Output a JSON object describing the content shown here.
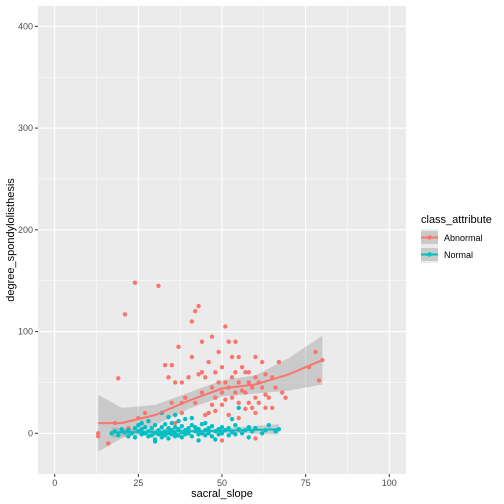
{
  "chart_data": {
    "type": "scatter",
    "xlabel": "sacral_slope",
    "ylabel": "degree_spondylolisthesis",
    "xlim": [
      -5,
      105
    ],
    "ylim": [
      -40,
      420
    ],
    "x_ticks": [
      0,
      25,
      50,
      75,
      100
    ],
    "x_tick_labels": [
      "0",
      "25",
      "50",
      "75",
      "100"
    ],
    "y_ticks": [
      0,
      100,
      200,
      300,
      400
    ],
    "y_tick_labels": [
      "0",
      "100",
      "200",
      "300",
      "400"
    ],
    "grid": true,
    "legend": {
      "title": "class_attribute",
      "placement": "right",
      "entries": [
        "Abnormal",
        "Normal"
      ]
    },
    "colors": {
      "Abnormal": "#F8766D",
      "Normal": "#00BFC4",
      "panel": "#EBEBEB",
      "ribbon": "#999999"
    },
    "series": [
      {
        "name": "Abnormal",
        "points": [
          [
            13,
            0
          ],
          [
            13,
            -3
          ],
          [
            16,
            -10
          ],
          [
            19,
            54
          ],
          [
            21,
            117
          ],
          [
            24,
            148
          ],
          [
            18,
            10
          ],
          [
            22,
            5
          ],
          [
            25,
            15
          ],
          [
            27,
            20
          ],
          [
            31,
            145
          ],
          [
            32,
            20
          ],
          [
            33,
            67
          ],
          [
            34,
            55
          ],
          [
            35,
            67
          ],
          [
            35,
            30
          ],
          [
            36,
            10
          ],
          [
            37,
            85
          ],
          [
            38,
            20
          ],
          [
            38,
            50
          ],
          [
            39,
            35
          ],
          [
            40,
            55
          ],
          [
            41,
            75
          ],
          [
            41,
            110
          ],
          [
            42,
            120
          ],
          [
            42,
            30
          ],
          [
            43,
            125
          ],
          [
            43,
            58
          ],
          [
            44,
            90
          ],
          [
            44,
            40
          ],
          [
            45,
            18
          ],
          [
            45,
            55
          ],
          [
            46,
            70
          ],
          [
            47,
            95
          ],
          [
            47,
            45
          ],
          [
            47,
            28
          ],
          [
            48,
            60
          ],
          [
            48,
            35
          ],
          [
            48,
            22
          ],
          [
            49,
            80
          ],
          [
            49,
            50
          ],
          [
            50,
            40
          ],
          [
            50,
            65
          ],
          [
            50,
            28
          ],
          [
            51,
            105
          ],
          [
            51,
            50
          ],
          [
            51,
            33
          ],
          [
            52,
            90
          ],
          [
            52,
            45
          ],
          [
            52,
            18
          ],
          [
            53,
            75
          ],
          [
            53,
            55
          ],
          [
            53,
            35
          ],
          [
            54,
            60
          ],
          [
            54,
            40
          ],
          [
            55,
            75
          ],
          [
            55,
            50
          ],
          [
            55,
            30
          ],
          [
            55,
            15
          ],
          [
            56,
            65
          ],
          [
            56,
            42
          ],
          [
            57,
            60
          ],
          [
            57,
            40
          ],
          [
            57,
            24
          ],
          [
            58,
            50
          ],
          [
            58,
            30
          ],
          [
            59,
            45
          ],
          [
            59,
            25
          ],
          [
            60,
            75
          ],
          [
            60,
            55
          ],
          [
            60,
            35
          ],
          [
            60,
            20
          ],
          [
            61,
            50
          ],
          [
            61,
            30
          ],
          [
            62,
            45
          ],
          [
            63,
            58
          ],
          [
            63,
            38
          ],
          [
            63,
            25
          ],
          [
            64,
            35
          ],
          [
            65,
            55
          ],
          [
            66,
            45
          ],
          [
            67,
            70
          ],
          [
            68,
            40
          ],
          [
            69,
            35
          ],
          [
            76,
            65
          ],
          [
            78,
            80
          ],
          [
            79,
            52
          ],
          [
            80,
            72
          ],
          [
            62,
            70
          ],
          [
            60,
            -5
          ],
          [
            43,
            4
          ],
          [
            55,
            3
          ],
          [
            65,
            25
          ],
          [
            50,
            -7
          ],
          [
            46,
            20
          ],
          [
            36,
            50
          ],
          [
            38,
            30
          ],
          [
            44,
            60
          ],
          [
            54,
            90
          ],
          [
            58,
            60
          ]
        ],
        "fit": [
          [
            13,
            10
          ],
          [
            20,
            10
          ],
          [
            30,
            18
          ],
          [
            40,
            32
          ],
          [
            50,
            44
          ],
          [
            60,
            48
          ],
          [
            70,
            58
          ],
          [
            80,
            72
          ]
        ],
        "ci_upper": [
          [
            13,
            38
          ],
          [
            20,
            25
          ],
          [
            30,
            28
          ],
          [
            40,
            40
          ],
          [
            50,
            52
          ],
          [
            60,
            57
          ],
          [
            70,
            74
          ],
          [
            80,
            96
          ]
        ],
        "ci_lower": [
          [
            13,
            -18
          ],
          [
            20,
            -5
          ],
          [
            30,
            8
          ],
          [
            40,
            24
          ],
          [
            50,
            36
          ],
          [
            60,
            39
          ],
          [
            70,
            42
          ],
          [
            80,
            48
          ]
        ]
      },
      {
        "name": "Normal",
        "points": [
          [
            17,
            0
          ],
          [
            18,
            2
          ],
          [
            19,
            -2
          ],
          [
            20,
            4
          ],
          [
            21,
            1
          ],
          [
            22,
            3
          ],
          [
            22,
            -3
          ],
          [
            23,
            0
          ],
          [
            24,
            5
          ],
          [
            24,
            -4
          ],
          [
            25,
            2
          ],
          [
            25,
            8
          ],
          [
            26,
            -1
          ],
          [
            26,
            4
          ],
          [
            27,
            0
          ],
          [
            27,
            6
          ],
          [
            28,
            -3
          ],
          [
            28,
            2
          ],
          [
            29,
            5
          ],
          [
            29,
            -2
          ],
          [
            30,
            0
          ],
          [
            30,
            8
          ],
          [
            30,
            -6
          ],
          [
            31,
            3
          ],
          [
            31,
            -1
          ],
          [
            32,
            6
          ],
          [
            32,
            0
          ],
          [
            32,
            -4
          ],
          [
            33,
            2
          ],
          [
            33,
            9
          ],
          [
            33,
            -2
          ],
          [
            34,
            5
          ],
          [
            34,
            0
          ],
          [
            34,
            -5
          ],
          [
            35,
            3
          ],
          [
            35,
            10
          ],
          [
            35,
            -1
          ],
          [
            36,
            6
          ],
          [
            36,
            0
          ],
          [
            36,
            -3
          ],
          [
            37,
            4
          ],
          [
            37,
            12
          ],
          [
            37,
            -2
          ],
          [
            38,
            1
          ],
          [
            38,
            7
          ],
          [
            38,
            -4
          ],
          [
            39,
            3
          ],
          [
            39,
            -1
          ],
          [
            40,
            5
          ],
          [
            40,
            0
          ],
          [
            41,
            8
          ],
          [
            41,
            -3
          ],
          [
            42,
            2
          ],
          [
            42,
            6
          ],
          [
            43,
            -1
          ],
          [
            43,
            4
          ],
          [
            44,
            0
          ],
          [
            44,
            9
          ],
          [
            45,
            3
          ],
          [
            45,
            -2
          ],
          [
            46,
            5
          ],
          [
            46,
            0
          ],
          [
            47,
            -3
          ],
          [
            47,
            7
          ],
          [
            48,
            2
          ],
          [
            49,
            -1
          ],
          [
            49,
            4
          ],
          [
            50,
            6
          ],
          [
            50,
            0
          ],
          [
            51,
            3
          ],
          [
            52,
            -2
          ],
          [
            52,
            5
          ],
          [
            53,
            1
          ],
          [
            54,
            8
          ],
          [
            54,
            -1
          ],
          [
            55,
            4
          ],
          [
            55,
            25
          ],
          [
            56,
            0
          ],
          [
            57,
            3
          ],
          [
            58,
            -4
          ],
          [
            58,
            6
          ],
          [
            59,
            2
          ],
          [
            60,
            5
          ],
          [
            62,
            0
          ],
          [
            63,
            3
          ],
          [
            64,
            8
          ],
          [
            66,
            2
          ],
          [
            67,
            4
          ],
          [
            32,
            20
          ],
          [
            28,
            12
          ],
          [
            36,
            18
          ],
          [
            41,
            15
          ],
          [
            30,
            -8
          ],
          [
            45,
            10
          ],
          [
            26,
            10
          ],
          [
            48,
            -6
          ],
          [
            39,
            14
          ],
          [
            53,
            14
          ],
          [
            43,
            -7
          ],
          [
            34,
            16
          ]
        ],
        "fit": [
          [
            17,
            1
          ],
          [
            25,
            1
          ],
          [
            35,
            2
          ],
          [
            45,
            2
          ],
          [
            55,
            3
          ],
          [
            67,
            4
          ]
        ],
        "ci_upper": [
          [
            17,
            6
          ],
          [
            25,
            4
          ],
          [
            35,
            4
          ],
          [
            45,
            4
          ],
          [
            55,
            6
          ],
          [
            67,
            9
          ]
        ],
        "ci_lower": [
          [
            17,
            -4
          ],
          [
            25,
            -2
          ],
          [
            35,
            0
          ],
          [
            45,
            0
          ],
          [
            55,
            0
          ],
          [
            67,
            -1
          ]
        ]
      }
    ]
  }
}
